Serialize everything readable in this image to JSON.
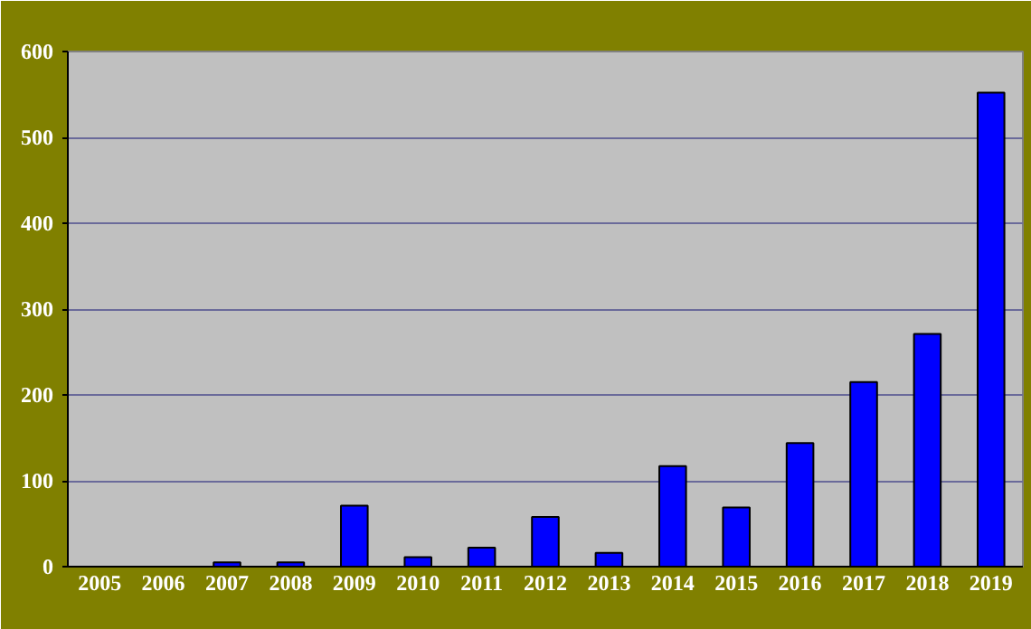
{
  "chart_data": {
    "type": "bar",
    "categories": [
      "2005",
      "2006",
      "2007",
      "2008",
      "2009",
      "2010",
      "2011",
      "2012",
      "2013",
      "2014",
      "2015",
      "2016",
      "2017",
      "2018",
      "2019"
    ],
    "values": [
      0,
      0,
      5,
      5,
      71,
      11,
      22,
      58,
      16,
      117,
      69,
      144,
      215,
      271,
      552
    ],
    "color": "#0000ff",
    "ylim": [
      0,
      600
    ],
    "yticks": [
      0,
      100,
      200,
      300,
      400,
      500,
      600
    ],
    "grid": "y"
  }
}
